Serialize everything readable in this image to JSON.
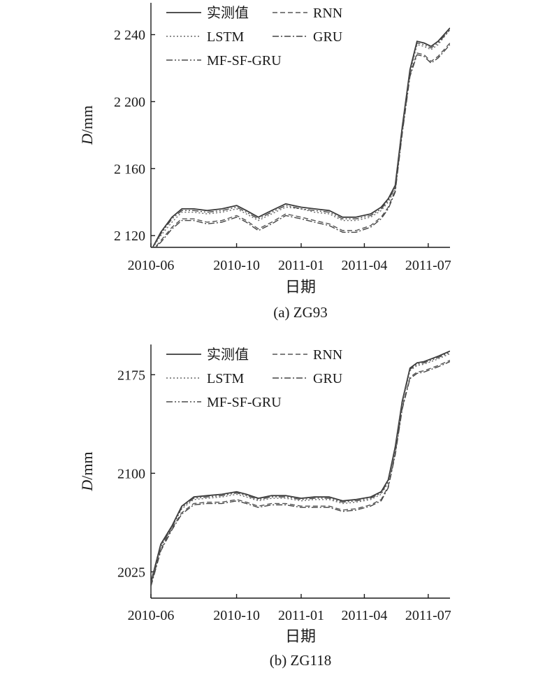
{
  "chart_data": [
    {
      "type": "line",
      "caption": "(a) ZG93",
      "xlabel": "日期",
      "ylabel_italic": "D",
      "ylabel_unit": "/mm",
      "xlim": [
        "2010-06-01",
        "2011-08-01"
      ],
      "ylim": [
        2113,
        2259
      ],
      "x_ticks": [
        "2010-06",
        "2010-10",
        "2011-01",
        "2011-04",
        "2011-07"
      ],
      "y_ticks": [
        {
          "value": 2120,
          "label": "2 120"
        },
        {
          "value": 2160,
          "label": "2 160"
        },
        {
          "value": 2200,
          "label": "2 200"
        },
        {
          "value": 2240,
          "label": "2 240"
        }
      ],
      "legend": [
        "实测值",
        "RNN",
        "LSTM",
        "GRU",
        "MF-SF-GRU"
      ],
      "legend_position": "top-left",
      "series": [
        {
          "name": "实测值",
          "style": "solid",
          "x": [
            "2010-06-01",
            "2010-06-15",
            "2010-07-01",
            "2010-07-15",
            "2010-08-01",
            "2010-08-20",
            "2010-09-10",
            "2010-10-01",
            "2010-10-15",
            "2010-11-01",
            "2010-11-20",
            "2010-12-10",
            "2011-01-01",
            "2011-01-20",
            "2011-02-10",
            "2011-03-01",
            "2011-03-20",
            "2011-04-10",
            "2011-04-25",
            "2011-05-05",
            "2011-05-15",
            "2011-05-25",
            "2011-06-05",
            "2011-06-15",
            "2011-06-25",
            "2011-07-05",
            "2011-07-15",
            "2011-08-01"
          ],
          "y": [
            2111,
            2122,
            2131,
            2136,
            2136,
            2135,
            2136,
            2138,
            2135,
            2131,
            2135,
            2139,
            2137,
            2136,
            2135,
            2131,
            2131,
            2133,
            2137,
            2142,
            2150,
            2185,
            2219,
            2236,
            2235,
            2233,
            2236,
            2244
          ]
        },
        {
          "name": "RNN",
          "style": "dashed",
          "x": [
            "2010-06-01",
            "2010-06-15",
            "2010-07-01",
            "2010-07-15",
            "2010-08-01",
            "2010-08-20",
            "2010-09-10",
            "2010-10-01",
            "2010-10-15",
            "2010-11-01",
            "2010-11-20",
            "2010-12-10",
            "2011-01-01",
            "2011-01-20",
            "2011-02-10",
            "2011-03-01",
            "2011-03-20",
            "2011-04-10",
            "2011-04-25",
            "2011-05-05",
            "2011-05-15",
            "2011-05-25",
            "2011-06-05",
            "2011-06-15",
            "2011-06-25",
            "2011-07-05",
            "2011-07-15",
            "2011-08-01"
          ],
          "y": [
            2110,
            2117,
            2125,
            2130,
            2130,
            2128,
            2129,
            2132,
            2129,
            2124,
            2128,
            2133,
            2131,
            2129,
            2127,
            2123,
            2123,
            2126,
            2131,
            2137,
            2147,
            2182,
            2216,
            2229,
            2228,
            2224,
            2227,
            2235
          ]
        },
        {
          "name": "LSTM",
          "style": "dotted",
          "x": [
            "2010-06-01",
            "2010-06-15",
            "2010-07-01",
            "2010-07-15",
            "2010-08-01",
            "2010-08-20",
            "2010-09-10",
            "2010-10-01",
            "2010-10-15",
            "2010-11-01",
            "2010-11-20",
            "2010-12-10",
            "2011-01-01",
            "2011-01-20",
            "2011-02-10",
            "2011-03-01",
            "2011-03-20",
            "2011-04-10",
            "2011-04-25",
            "2011-05-05",
            "2011-05-15",
            "2011-05-25",
            "2011-06-05",
            "2011-06-15",
            "2011-06-25",
            "2011-07-05",
            "2011-07-15",
            "2011-08-01"
          ],
          "y": [
            2111,
            2120,
            2128,
            2134,
            2134,
            2133,
            2134,
            2136,
            2133,
            2129,
            2133,
            2137,
            2136,
            2134,
            2133,
            2129,
            2129,
            2131,
            2135,
            2140,
            2148,
            2183,
            2217,
            2234,
            2233,
            2231,
            2234,
            2243
          ]
        },
        {
          "name": "GRU",
          "style": "dashdot",
          "x": [
            "2010-06-01",
            "2010-06-15",
            "2010-07-01",
            "2010-07-15",
            "2010-08-01",
            "2010-08-20",
            "2010-09-10",
            "2010-10-01",
            "2010-10-15",
            "2010-11-01",
            "2010-11-20",
            "2010-12-10",
            "2011-01-01",
            "2011-01-20",
            "2011-02-10",
            "2011-03-01",
            "2011-03-20",
            "2011-04-10",
            "2011-04-25",
            "2011-05-05",
            "2011-05-15",
            "2011-05-25",
            "2011-06-05",
            "2011-06-15",
            "2011-06-25",
            "2011-07-05",
            "2011-07-15",
            "2011-08-01"
          ],
          "y": [
            2110,
            2116,
            2124,
            2129,
            2129,
            2127,
            2128,
            2131,
            2128,
            2123,
            2127,
            2132,
            2130,
            2128,
            2126,
            2122,
            2122,
            2125,
            2130,
            2136,
            2146,
            2181,
            2215,
            2228,
            2227,
            2223,
            2226,
            2234
          ]
        },
        {
          "name": "MF-SF-GRU",
          "style": "dashdotdot",
          "x": [
            "2010-06-01",
            "2010-06-15",
            "2010-07-01",
            "2010-07-15",
            "2010-08-01",
            "2010-08-20",
            "2010-09-10",
            "2010-10-01",
            "2010-10-15",
            "2010-11-01",
            "2010-11-20",
            "2010-12-10",
            "2011-01-01",
            "2011-01-20",
            "2011-02-10",
            "2011-03-01",
            "2011-03-20",
            "2011-04-10",
            "2011-04-25",
            "2011-05-05",
            "2011-05-15",
            "2011-05-25",
            "2011-06-05",
            "2011-06-15",
            "2011-06-25",
            "2011-07-05",
            "2011-07-15",
            "2011-08-01"
          ],
          "y": [
            2111,
            2121,
            2130,
            2135,
            2135,
            2134,
            2135,
            2137,
            2134,
            2130,
            2134,
            2138,
            2136,
            2135,
            2134,
            2130,
            2130,
            2132,
            2136,
            2141,
            2149,
            2184,
            2218,
            2235,
            2234,
            2232,
            2235,
            2243
          ]
        }
      ]
    },
    {
      "type": "line",
      "caption": "(b) ZG118",
      "xlabel": "日期",
      "ylabel_italic": "D",
      "ylabel_unit": "/mm",
      "xlim": [
        "2010-06-01",
        "2011-08-01"
      ],
      "ylim": [
        2005,
        2198
      ],
      "x_ticks": [
        "2010-06",
        "2010-10",
        "2011-01",
        "2011-04",
        "2011-07"
      ],
      "y_ticks": [
        {
          "value": 2025,
          "label": "2025"
        },
        {
          "value": 2100,
          "label": "2100"
        },
        {
          "value": 2175,
          "label": "2175"
        }
      ],
      "legend": [
        "实测值",
        "RNN",
        "LSTM",
        "GRU",
        "MF-SF-GRU"
      ],
      "legend_position": "top-left",
      "series": [
        {
          "name": "实测值",
          "style": "solid",
          "x": [
            "2010-06-01",
            "2010-06-15",
            "2010-07-01",
            "2010-07-15",
            "2010-08-01",
            "2010-08-20",
            "2010-09-10",
            "2010-10-01",
            "2010-10-15",
            "2010-11-01",
            "2010-11-20",
            "2010-12-10",
            "2011-01-01",
            "2011-01-20",
            "2011-02-10",
            "2011-03-01",
            "2011-03-20",
            "2011-04-10",
            "2011-04-25",
            "2011-05-05",
            "2011-05-15",
            "2011-05-25",
            "2011-06-05",
            "2011-06-15",
            "2011-06-25",
            "2011-07-05",
            "2011-07-15",
            "2011-08-01"
          ],
          "y": [
            2017,
            2046,
            2060,
            2075,
            2082,
            2083,
            2084,
            2086,
            2084,
            2081,
            2083,
            2083,
            2081,
            2082,
            2082,
            2079,
            2080,
            2082,
            2086,
            2095,
            2120,
            2155,
            2180,
            2184,
            2185,
            2187,
            2189,
            2193
          ]
        },
        {
          "name": "RNN",
          "style": "dashed",
          "x": [
            "2010-06-01",
            "2010-06-15",
            "2010-07-01",
            "2010-07-15",
            "2010-08-01",
            "2010-08-20",
            "2010-09-10",
            "2010-10-01",
            "2010-10-15",
            "2010-11-01",
            "2010-11-20",
            "2010-12-10",
            "2011-01-01",
            "2011-01-20",
            "2011-02-10",
            "2011-03-01",
            "2011-03-20",
            "2011-04-10",
            "2011-04-25",
            "2011-05-05",
            "2011-05-15",
            "2011-05-25",
            "2011-06-05",
            "2011-06-15",
            "2011-06-25",
            "2011-07-05",
            "2011-07-15",
            "2011-08-01"
          ],
          "y": [
            2015,
            2042,
            2058,
            2070,
            2077,
            2078,
            2078,
            2080,
            2078,
            2075,
            2077,
            2077,
            2075,
            2075,
            2075,
            2072,
            2073,
            2076,
            2080,
            2090,
            2115,
            2150,
            2173,
            2177,
            2178,
            2180,
            2182,
            2186
          ]
        },
        {
          "name": "LSTM",
          "style": "dotted",
          "x": [
            "2010-06-01",
            "2010-06-15",
            "2010-07-01",
            "2010-07-15",
            "2010-08-01",
            "2010-08-20",
            "2010-09-10",
            "2010-10-01",
            "2010-10-15",
            "2010-11-01",
            "2010-11-20",
            "2010-12-10",
            "2011-01-01",
            "2011-01-20",
            "2011-02-10",
            "2011-03-01",
            "2011-03-20",
            "2011-04-10",
            "2011-04-25",
            "2011-05-05",
            "2011-05-15",
            "2011-05-25",
            "2011-06-05",
            "2011-06-15",
            "2011-06-25",
            "2011-07-05",
            "2011-07-15",
            "2011-08-01"
          ],
          "y": [
            2016,
            2045,
            2059,
            2073,
            2080,
            2081,
            2082,
            2084,
            2082,
            2079,
            2081,
            2081,
            2079,
            2080,
            2080,
            2077,
            2078,
            2080,
            2084,
            2093,
            2118,
            2153,
            2178,
            2182,
            2183,
            2185,
            2187,
            2191
          ]
        },
        {
          "name": "GRU",
          "style": "dashdot",
          "x": [
            "2010-06-01",
            "2010-06-15",
            "2010-07-01",
            "2010-07-15",
            "2010-08-01",
            "2010-08-20",
            "2010-09-10",
            "2010-10-01",
            "2010-10-15",
            "2010-11-01",
            "2010-11-20",
            "2010-12-10",
            "2011-01-01",
            "2011-01-20",
            "2011-02-10",
            "2011-03-01",
            "2011-03-20",
            "2011-04-10",
            "2011-04-25",
            "2011-05-05",
            "2011-05-15",
            "2011-05-25",
            "2011-06-05",
            "2011-06-15",
            "2011-06-25",
            "2011-07-05",
            "2011-07-15",
            "2011-08-01"
          ],
          "y": [
            2014,
            2041,
            2057,
            2069,
            2076,
            2077,
            2077,
            2079,
            2077,
            2074,
            2076,
            2076,
            2074,
            2074,
            2074,
            2071,
            2072,
            2075,
            2079,
            2089,
            2114,
            2149,
            2172,
            2176,
            2177,
            2179,
            2181,
            2185
          ]
        },
        {
          "name": "MF-SF-GRU",
          "style": "dashdotdot",
          "x": [
            "2010-06-01",
            "2010-06-15",
            "2010-07-01",
            "2010-07-15",
            "2010-08-01",
            "2010-08-20",
            "2010-09-10",
            "2010-10-01",
            "2010-10-15",
            "2010-11-01",
            "2010-11-20",
            "2010-12-10",
            "2011-01-01",
            "2011-01-20",
            "2011-02-10",
            "2011-03-01",
            "2011-03-20",
            "2011-04-10",
            "2011-04-25",
            "2011-05-05",
            "2011-05-15",
            "2011-05-25",
            "2011-06-05",
            "2011-06-15",
            "2011-06-25",
            "2011-07-05",
            "2011-07-15",
            "2011-08-01"
          ],
          "y": [
            2016,
            2044,
            2059,
            2074,
            2081,
            2082,
            2083,
            2085,
            2083,
            2080,
            2082,
            2082,
            2080,
            2081,
            2081,
            2078,
            2079,
            2081,
            2085,
            2094,
            2119,
            2154,
            2179,
            2183,
            2184,
            2186,
            2188,
            2192
          ]
        }
      ]
    }
  ]
}
